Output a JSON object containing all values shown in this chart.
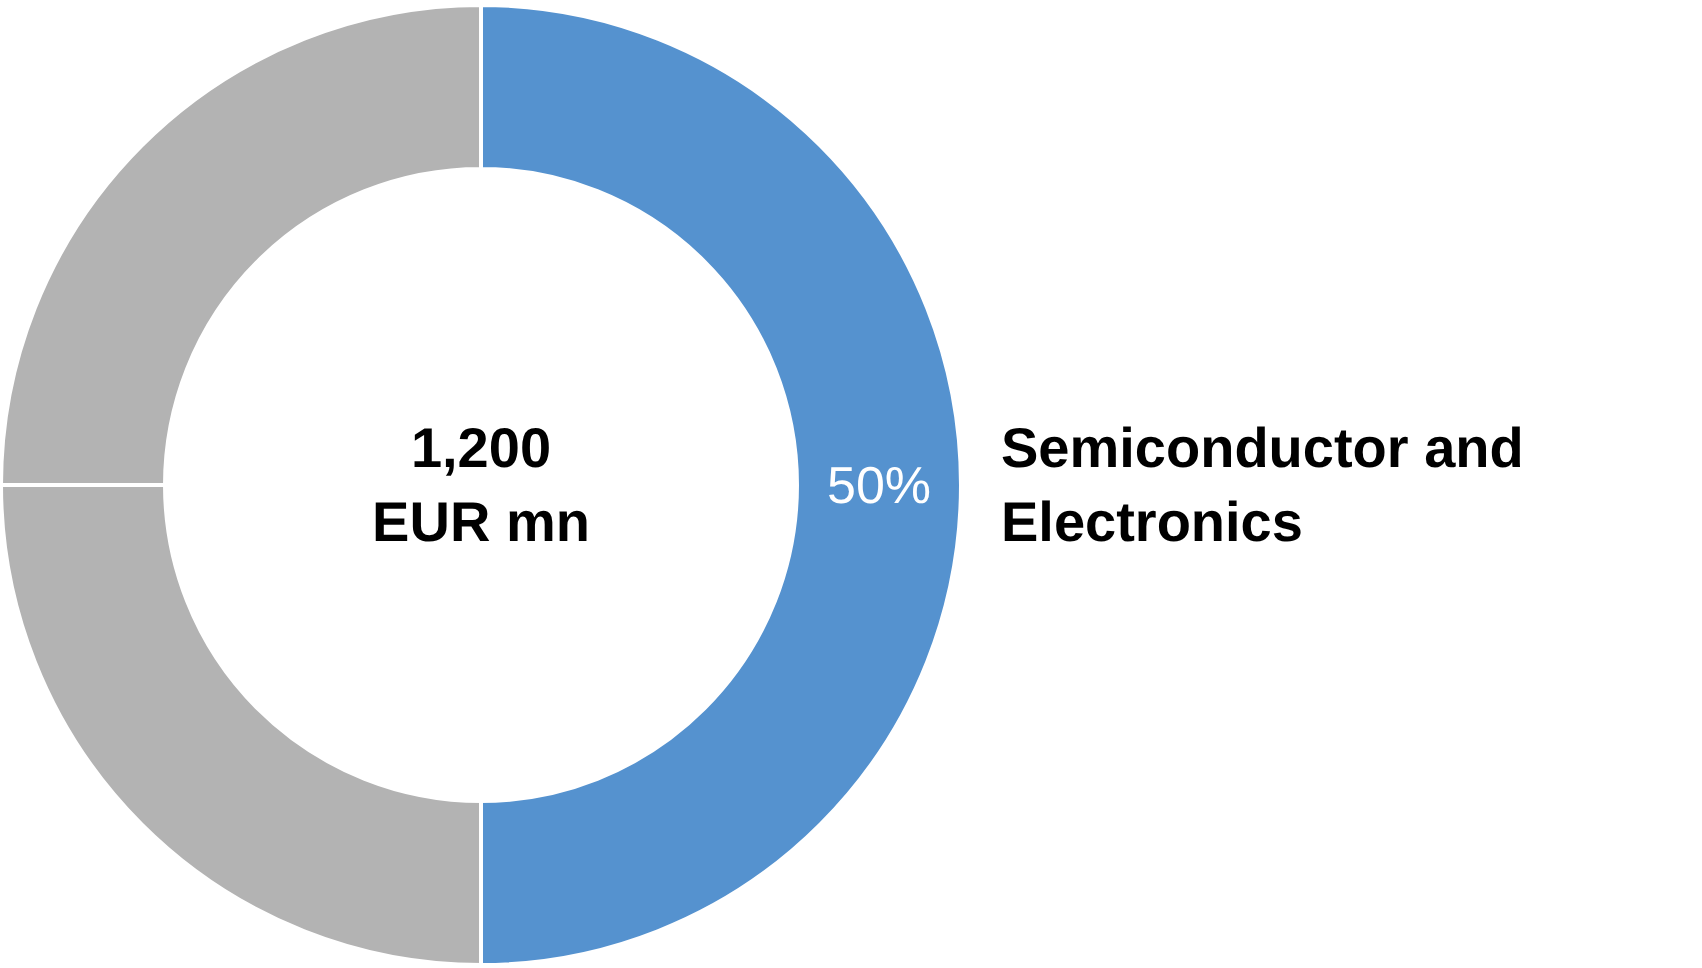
{
  "chart_data": {
    "type": "donut",
    "categories": [
      "Semiconductor and Electronics",
      null,
      null
    ],
    "values": [
      50,
      25,
      25
    ],
    "colors": [
      "#5592cf",
      "#b3b3b3",
      "#b3b3b3"
    ],
    "value_labels": [
      "50%",
      null,
      null
    ],
    "annotations": [
      "1,200 EUR mn"
    ]
  }
}
